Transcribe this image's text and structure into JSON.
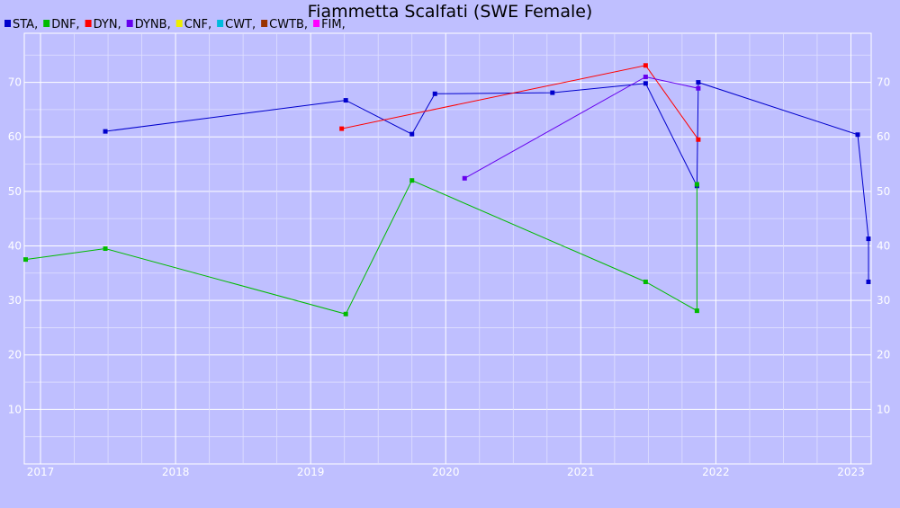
{
  "chart_data": {
    "type": "line",
    "title": "Fiammetta Scalfati (SWE Female)",
    "xlabel": "",
    "ylabel": "",
    "grid": true,
    "legend_position": "top-left",
    "xlim": [
      2016.88,
      2023.15
    ],
    "ylim": [
      0,
      79
    ],
    "x_ticks": [
      2017,
      2018,
      2019,
      2020,
      2021,
      2022,
      2023
    ],
    "y_ticks": [
      10,
      20,
      30,
      40,
      50,
      60,
      70
    ],
    "legend": [
      {
        "label": "STA,",
        "color": "#0000cc"
      },
      {
        "label": "DNF,",
        "color": "#00bb00"
      },
      {
        "label": "DYN,",
        "color": "#ff0000"
      },
      {
        "label": "DYNB,",
        "color": "#6600ee"
      },
      {
        "label": "CNF,",
        "color": "#eeee00"
      },
      {
        "label": "CWT,",
        "color": "#00bbdd"
      },
      {
        "label": "CWTB,",
        "color": "#993300"
      },
      {
        "label": "FIM,",
        "color": "#ff00ff"
      }
    ],
    "series": [
      {
        "name": "STA",
        "color": "#0000cc",
        "points": [
          [
            2017.48,
            61.0
          ],
          [
            2019.26,
            66.7
          ],
          [
            2019.75,
            60.5
          ],
          [
            2019.92,
            67.9
          ],
          [
            2020.79,
            68.1
          ],
          [
            2021.48,
            69.8
          ],
          [
            2021.86,
            51.0
          ],
          [
            2021.87,
            70.0
          ],
          [
            2023.05,
            60.4
          ],
          [
            2023.13,
            41.3
          ],
          [
            2023.13,
            33.4
          ]
        ]
      },
      {
        "name": "DNF",
        "color": "#00bb00",
        "points": [
          [
            2016.89,
            37.5
          ],
          [
            2017.48,
            39.5
          ],
          [
            2019.26,
            27.5
          ],
          [
            2019.75,
            52.0
          ],
          [
            2021.48,
            33.4
          ],
          [
            2021.86,
            28.1
          ],
          [
            2021.86,
            51.3
          ]
        ]
      },
      {
        "name": "DYN",
        "color": "#ff0000",
        "points": [
          [
            2019.23,
            61.5
          ],
          [
            2021.48,
            73.1
          ],
          [
            2021.87,
            59.5
          ]
        ]
      },
      {
        "name": "DYNB",
        "color": "#6600ee",
        "points": [
          [
            2020.14,
            52.4
          ],
          [
            2021.48,
            71.0
          ],
          [
            2021.87,
            68.9
          ]
        ]
      }
    ]
  }
}
